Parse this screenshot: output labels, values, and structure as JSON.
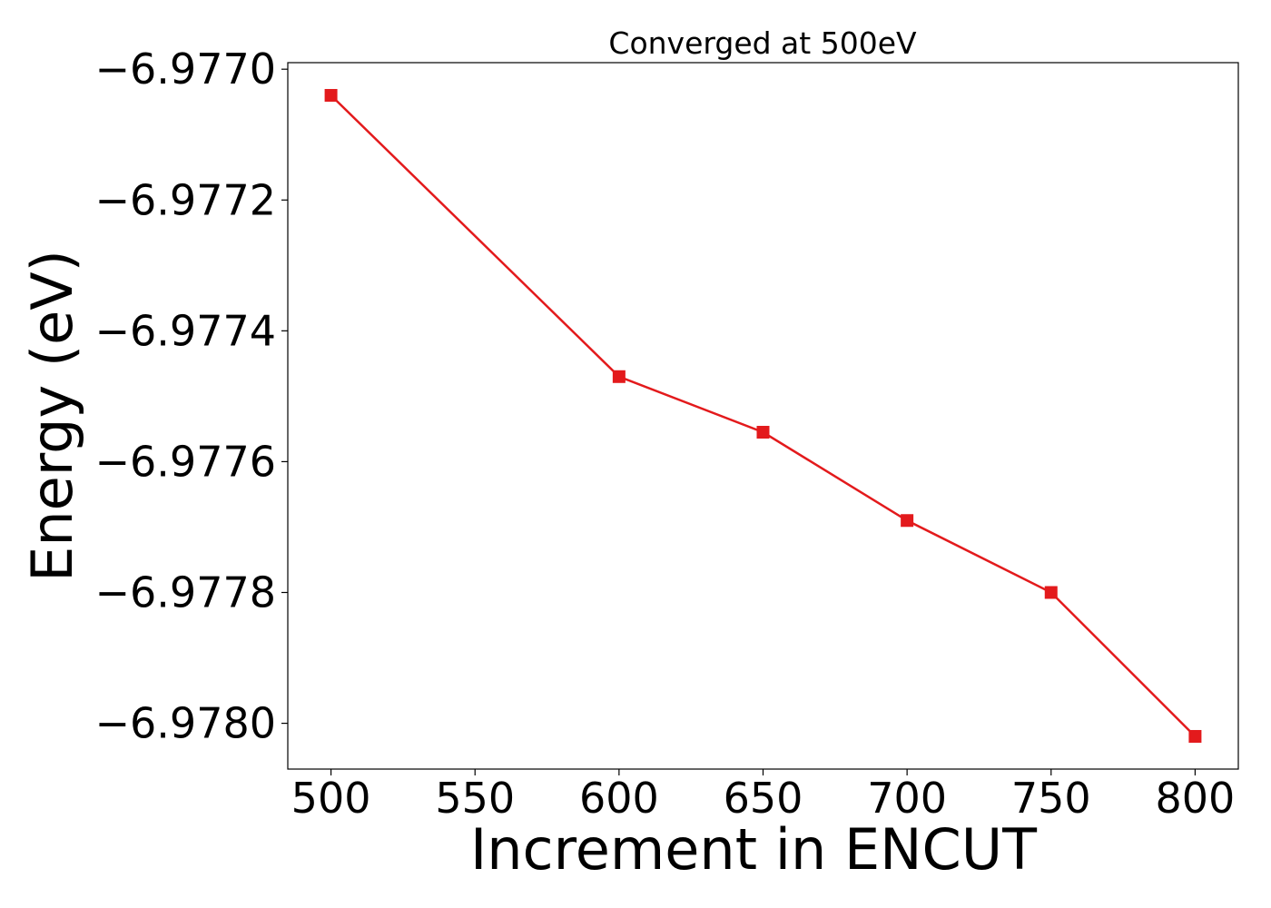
{
  "chart_data": {
    "type": "line",
    "title": "Converged at 500eV",
    "xlabel": "Increment in ENCUT",
    "ylabel": "Energy (eV)",
    "xlim": [
      485,
      815
    ],
    "ylim": [
      -6.97807,
      -6.97699
    ],
    "xticks": [
      500,
      550,
      600,
      650,
      700,
      750,
      800
    ],
    "yticks": [
      -6.977,
      -6.9772,
      -6.9774,
      -6.9776,
      -6.9778,
      -6.978
    ],
    "ytick_labels": [
      "−6.9770",
      "−6.9772",
      "−6.9774",
      "−6.9776",
      "−6.9778",
      "−6.9780"
    ],
    "grid": false,
    "series": [
      {
        "color": "#e31a1c",
        "marker": "square",
        "x": [
          500,
          600,
          650,
          700,
          750,
          800
        ],
        "y": [
          -6.97704,
          -6.97747,
          -6.977555,
          -6.97769,
          -6.9778,
          -6.97802
        ]
      }
    ]
  }
}
